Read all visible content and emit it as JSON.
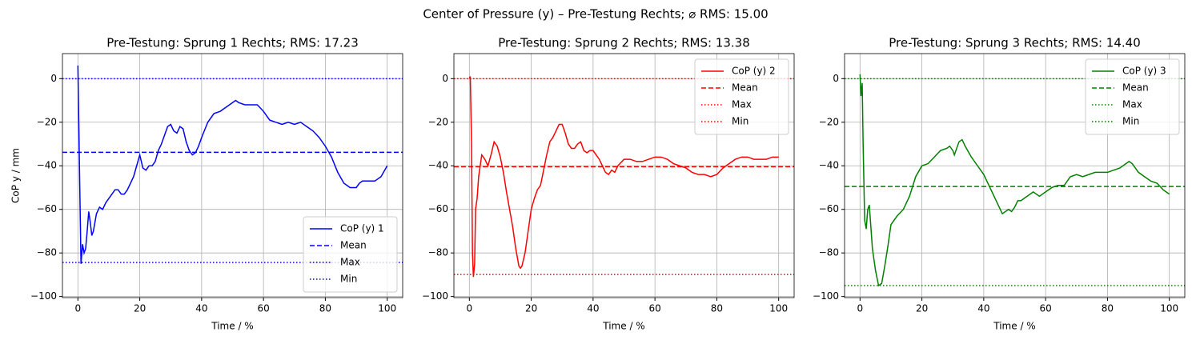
{
  "figure_title": "Center of Pressure (y) – Pre-Testung Rechts; ⌀ RMS: 15.00",
  "chart_data": [
    {
      "type": "line",
      "title": "Pre-Testung: Sprung 1 Rechts; RMS: 17.23",
      "xlabel": "Time / %",
      "ylabel": "CoP y / mm",
      "xlim": [
        -5,
        105
      ],
      "ylim": [
        -100.5,
        11.5
      ],
      "xticks": [
        0,
        20,
        40,
        60,
        80,
        100
      ],
      "yticks": [
        0,
        {
          "value": -20,
          "label": "−20"
        },
        {
          "value": -40,
          "label": "−40"
        },
        {
          "value": -60,
          "label": "−60"
        },
        {
          "value": -80,
          "label": "−80"
        },
        {
          "value": -100,
          "label": "−100"
        }
      ],
      "grid": true,
      "legend": "lower right",
      "x": [
        0,
        0.5,
        1,
        1.5,
        2,
        2.5,
        3,
        3.5,
        4,
        4.5,
        5,
        6,
        7,
        8,
        9,
        10,
        11,
        12,
        13,
        14,
        15,
        16,
        17,
        18,
        19,
        20,
        21,
        22,
        23,
        24,
        25,
        26,
        27,
        28,
        29,
        30,
        31,
        32,
        33,
        34,
        35,
        36,
        37,
        38,
        39,
        40,
        42,
        44,
        46,
        48,
        50,
        51,
        52,
        54,
        56,
        58,
        60,
        62,
        64,
        66,
        68,
        70,
        72,
        74,
        76,
        78,
        80,
        82,
        84,
        86,
        88,
        90,
        91,
        92,
        94,
        96,
        98,
        100
      ],
      "series": [
        {
          "name": "CoP (y) 1",
          "color": "#0000ff",
          "values": [
            6,
            -40,
            -85,
            -76,
            -80,
            -78,
            -70,
            -61,
            -66,
            -72,
            -70,
            -62,
            -59,
            -60,
            -57,
            -55,
            -53,
            -51,
            -51,
            -53,
            -53,
            -51,
            -48,
            -45,
            -40,
            -35,
            -41,
            -42,
            -40,
            -40,
            -38,
            -33,
            -30,
            -26,
            -22,
            -21,
            -24,
            -25,
            -22,
            -23,
            -29,
            -33,
            -35,
            -34,
            -31,
            -27,
            -20,
            -16,
            -15,
            -13,
            -11,
            -10,
            -11,
            -12,
            -12,
            -12,
            -15,
            -19,
            -20,
            -21,
            -20,
            -21,
            -20,
            -22,
            -24,
            -27,
            -31,
            -36,
            -43,
            -48,
            -50,
            -50,
            -48,
            -47,
            -47,
            -47,
            -45,
            -40
          ]
        }
      ],
      "reference_lines": [
        {
          "name": "Mean",
          "value": -33.8,
          "style": "dashed"
        },
        {
          "name": "Max",
          "value": 0,
          "style": "dotted"
        },
        {
          "name": "Min",
          "value": -84.4,
          "style": "dotted"
        }
      ]
    },
    {
      "type": "line",
      "title": "Pre-Testung: Sprung 2 Rechts; RMS: 13.38",
      "xlabel": "Time / %",
      "xlim": [
        -5,
        105
      ],
      "ylim": [
        -100.5,
        11.5
      ],
      "xticks": [
        0,
        20,
        40,
        60,
        80,
        100
      ],
      "yticks": [
        0,
        {
          "value": -20,
          "label": "−20"
        },
        {
          "value": -40,
          "label": "−40"
        },
        {
          "value": -60,
          "label": "−60"
        },
        {
          "value": -80,
          "label": "−80"
        },
        {
          "value": -100,
          "label": "−100"
        }
      ],
      "grid": true,
      "legend": "upper right",
      "x": [
        0,
        0.3,
        0.7,
        1,
        1.3,
        1.7,
        2,
        2.5,
        3,
        3.5,
        4,
        5,
        6,
        7,
        8,
        9,
        10,
        11,
        12,
        13,
        14,
        15,
        16,
        16.5,
        17,
        18,
        19,
        20,
        21,
        22,
        23,
        24,
        25,
        26,
        27,
        28,
        29,
        30,
        31,
        32,
        33,
        34,
        35,
        36,
        37,
        38,
        39,
        40,
        41,
        42,
        43,
        44,
        45,
        46,
        47,
        48,
        50,
        52,
        54,
        56,
        58,
        60,
        62,
        64,
        66,
        68,
        70,
        72,
        74,
        76,
        78,
        80,
        82,
        84,
        86,
        88,
        90,
        92,
        94,
        96,
        98,
        100
      ],
      "series": [
        {
          "name": "CoP (y) 2",
          "color": "#ff0000",
          "values": [
            0,
            1,
            -30,
            -80,
            -91,
            -85,
            -60,
            -55,
            -45,
            -40,
            -35,
            -37,
            -40,
            -35,
            -29,
            -31,
            -36,
            -43,
            -52,
            -60,
            -68,
            -78,
            -86,
            -87,
            -86,
            -80,
            -70,
            -60,
            -55,
            -51,
            -49,
            -42,
            -35,
            -29,
            -27,
            -24,
            -21,
            -21,
            -25,
            -30,
            -32,
            -32,
            -30,
            -29,
            -33,
            -34,
            -33,
            -33,
            -35,
            -37,
            -40,
            -43,
            -44,
            -42,
            -43,
            -40,
            -37,
            -37,
            -38,
            -38,
            -37,
            -36,
            -36,
            -37,
            -39,
            -40,
            -41,
            -43,
            -44,
            -44,
            -45,
            -44,
            -41,
            -39,
            -37,
            -36,
            -36,
            -37,
            -37,
            -37,
            -36,
            -36
          ]
        }
      ],
      "reference_lines": [
        {
          "name": "Mean",
          "value": -40.4,
          "style": "dashed"
        },
        {
          "name": "Max",
          "value": 0,
          "style": "dotted"
        },
        {
          "name": "Min",
          "value": -89.9,
          "style": "dotted"
        }
      ]
    },
    {
      "type": "line",
      "title": "Pre-Testung: Sprung 3 Rechts; RMS: 14.40",
      "xlabel": "Time / %",
      "xlim": [
        -5,
        105
      ],
      "ylim": [
        -100.5,
        11.5
      ],
      "xticks": [
        0,
        20,
        40,
        60,
        80,
        100
      ],
      "yticks": [
        0,
        {
          "value": -20,
          "label": "−20"
        },
        {
          "value": -40,
          "label": "−40"
        },
        {
          "value": -60,
          "label": "−60"
        },
        {
          "value": -80,
          "label": "−80"
        },
        {
          "value": -100,
          "label": "−100"
        }
      ],
      "grid": true,
      "legend": "upper right",
      "x": [
        0,
        0.3,
        0.7,
        1,
        1.5,
        2,
        2.5,
        3,
        3.5,
        4,
        5,
        6,
        7,
        8,
        9,
        10,
        12,
        14,
        16,
        18,
        20,
        22,
        24,
        26,
        28,
        29,
        30,
        30.5,
        31,
        32,
        33,
        34,
        36,
        38,
        40,
        42,
        44,
        46,
        47,
        48,
        49,
        50,
        51,
        52,
        54,
        56,
        58,
        60,
        62,
        64,
        66,
        68,
        70,
        72,
        74,
        76,
        78,
        80,
        82,
        84,
        86,
        87,
        88,
        90,
        92,
        94,
        96,
        98,
        100
      ],
      "series": [
        {
          "name": "CoP (y) 3",
          "color": "#008000",
          "values": [
            2,
            -8,
            -2,
            -30,
            -65,
            -69,
            -60,
            -58,
            -68,
            -78,
            -88,
            -95,
            -94,
            -86,
            -77,
            -67,
            -63,
            -60,
            -54,
            -45,
            -40,
            -39,
            -36,
            -33,
            -32,
            -31,
            -33,
            -35,
            -33,
            -29,
            -28,
            -31,
            -36,
            -40,
            -44,
            -50,
            -56,
            -62,
            -61,
            -60,
            -61,
            -59,
            -56,
            -56,
            -54,
            -52,
            -54,
            -52,
            -50,
            -49,
            -49,
            -45,
            -44,
            -45,
            -44,
            -43,
            -43,
            -43,
            -42,
            -41,
            -39,
            -38,
            -39,
            -43,
            -45,
            -47,
            -48,
            -51,
            -53
          ]
        }
      ],
      "reference_lines": [
        {
          "name": "Mean",
          "value": -49.5,
          "style": "dashed"
        },
        {
          "name": "Max",
          "value": 0,
          "style": "dotted"
        },
        {
          "name": "Min",
          "value": -95,
          "style": "dotted"
        }
      ]
    }
  ]
}
